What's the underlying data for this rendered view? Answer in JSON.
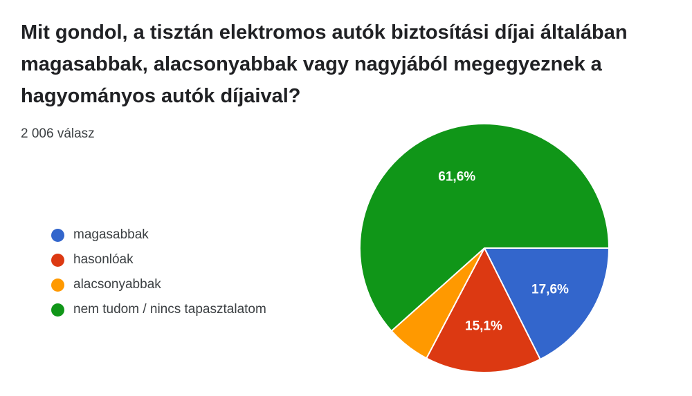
{
  "question": {
    "title": "Mit gondol, a tisztán elektromos autók biztosítási díjai általában magasabbak, alacsonyabbak vagy nagyjából megegyeznek a hagyományos autók díjaival?",
    "response_count": "2 006 válasz"
  },
  "chart_data": {
    "type": "pie",
    "title": "Mit gondol, a tisztán elektromos autók biztosítási díjai általában magasabbak, alacsonyabbak vagy nagyjából megegyeznek a hagyományos autók díjaival?",
    "start": "3 o'clock, clockwise",
    "slices": [
      {
        "name": "magasabbak",
        "value": 17.6,
        "label": "17,6%",
        "color": "#3366cc"
      },
      {
        "name": "hasonlóak",
        "value": 15.1,
        "label": "15,1%",
        "color": "#dc3912"
      },
      {
        "name": "alacsonyabbak",
        "value": 5.7,
        "label": "",
        "color": "#ff9900"
      },
      {
        "name": "nem tudom / nincs tapasztalatom",
        "value": 61.6,
        "label": "61,6%",
        "color": "#109618"
      }
    ],
    "legend_position": "left"
  },
  "legend": {
    "items": [
      {
        "label": "magasabbak",
        "color": "#3366cc"
      },
      {
        "label": "hasonlóak",
        "color": "#dc3912"
      },
      {
        "label": "alacsonyabbak",
        "color": "#ff9900"
      },
      {
        "label": "nem tudom / nincs tapasztalatom",
        "color": "#109618"
      }
    ]
  }
}
